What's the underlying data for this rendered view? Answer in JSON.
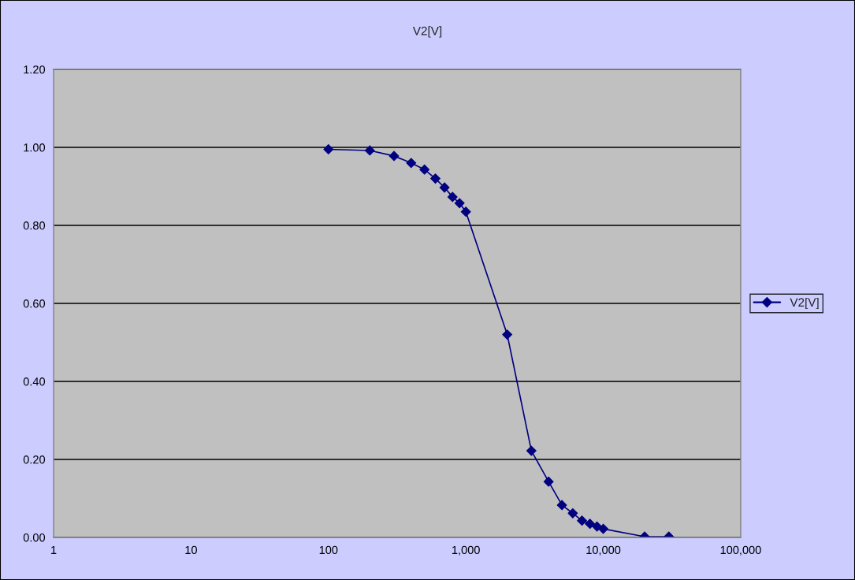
{
  "chart_data": {
    "type": "line",
    "title": "V2[V]",
    "x": [
      100,
      200,
      300,
      400,
      500,
      600,
      700,
      800,
      900,
      1000,
      2000,
      3000,
      4000,
      5000,
      6000,
      7000,
      8000,
      9000,
      10000,
      20000,
      30000
    ],
    "series": [
      {
        "name": "V2[V]",
        "color": "#000080",
        "values": [
          0.995,
          0.992,
          0.978,
          0.96,
          0.943,
          0.92,
          0.897,
          0.873,
          0.857,
          0.835,
          0.52,
          0.222,
          0.143,
          0.083,
          0.062,
          0.043,
          0.035,
          0.028,
          0.022,
          0.002,
          0.002
        ]
      }
    ],
    "log": "x",
    "xlim": [
      1,
      100000
    ],
    "xticks": [
      {
        "value": 1,
        "label": "1"
      },
      {
        "value": 10,
        "label": "10"
      },
      {
        "value": 100,
        "label": "100"
      },
      {
        "value": 1000,
        "label": "1,000"
      },
      {
        "value": 10000,
        "label": "10,000"
      },
      {
        "value": 100000,
        "label": "100,000"
      }
    ],
    "ylim": [
      0,
      1.2
    ],
    "yticks": [
      {
        "value": 0,
        "label": "0.00"
      },
      {
        "value": 0.2,
        "label": "0.20"
      },
      {
        "value": 0.4,
        "label": "0.40"
      },
      {
        "value": 0.6,
        "label": "0.60"
      },
      {
        "value": 0.8,
        "label": "0.80"
      },
      {
        "value": 1.0,
        "label": "1.00"
      },
      {
        "value": 1.2,
        "label": "1.20"
      }
    ],
    "grid": "y",
    "legend": "right",
    "marker": "diamond",
    "line_style": "solid"
  }
}
